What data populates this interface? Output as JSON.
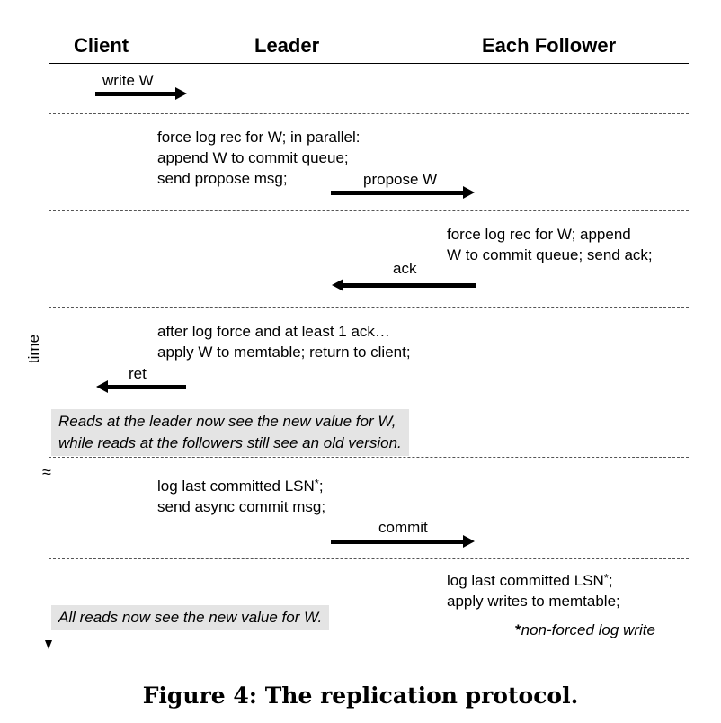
{
  "headers": {
    "client": "Client",
    "leader": "Leader",
    "follower": "Each Follower"
  },
  "axis": {
    "label": "time",
    "break_symbol": "≈"
  },
  "arrows": {
    "write": "write W",
    "propose": "propose W",
    "ack": "ack",
    "ret": "ret",
    "commit": "commit"
  },
  "steps": {
    "leader_force": [
      "force log rec for W; in parallel:",
      "append W to commit queue;",
      "send propose msg;"
    ],
    "follower_force": [
      "force log rec for W; append",
      "W to commit queue; send ack;"
    ],
    "leader_apply": [
      "after log force and at least 1 ack…",
      "apply W to memtable; return to client;"
    ],
    "leader_commit": [
      "log last committed LSN",
      "send async commit msg;"
    ],
    "follower_commit": [
      "log last committed LSN",
      "apply writes to memtable;"
    ],
    "star": "*",
    "semicolon": ";"
  },
  "notes": {
    "reads_leader": [
      "Reads at the leader now see the new value for W,",
      "while reads at the followers still see an old version."
    ],
    "all_reads": "All reads now see the new value for W."
  },
  "footnote": "non-forced log write",
  "caption": "Figure 4: The replication protocol."
}
